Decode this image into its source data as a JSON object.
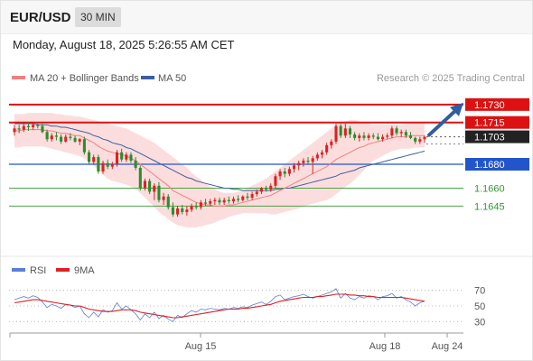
{
  "header": {
    "symbol": "EUR/USD",
    "timeframe": "30 MIN",
    "datetime": "Monday, August 18, 2025 5:26:55 AM CET"
  },
  "legend": {
    "ma20_label": "MA 20 + Bollinger Bands",
    "ma50_label": "MA 50",
    "ma20_color": "#f08080",
    "ma50_color": "#3b5fa0",
    "research": "Research © 2025 Trading Central"
  },
  "rsi_legend": {
    "rsi_label": "RSI",
    "ma9_label": "9MA",
    "rsi_color": "#5a7fd6",
    "ma9_color": "#dd2222"
  },
  "colors": {
    "up": "#dd2222",
    "down": "#2e8b2e",
    "resistance": "#dd1111",
    "current": "#222222",
    "pivot": "#2255cc",
    "support": "#339933",
    "band": "#fcd9d9",
    "arrow": "#2f5f9e"
  },
  "chart_data": {
    "type": "candlestick",
    "symbol": "EUR/USD",
    "ylim": [
      1.1615,
      1.1745
    ],
    "x_ticks": [
      "Aug 15",
      "Aug 18",
      "Aug 24"
    ],
    "levels": [
      {
        "label": "1.1730",
        "value": 1.173,
        "kind": "resistance"
      },
      {
        "label": "1.1715",
        "value": 1.1715,
        "kind": "resistance"
      },
      {
        "label": "1.1703",
        "value": 1.1703,
        "kind": "current"
      },
      {
        "label": "1.1680",
        "value": 1.168,
        "kind": "pivot"
      },
      {
        "label": "1.1660",
        "value": 1.166,
        "kind": "support"
      },
      {
        "label": "1.1645",
        "value": 1.1645,
        "kind": "support"
      }
    ],
    "projection": {
      "from": 1.1703,
      "to": 1.173
    },
    "ohlc": [
      [
        1.1707,
        1.1713,
        1.1704,
        1.171
      ],
      [
        1.171,
        1.1713,
        1.1706,
        1.1709
      ],
      [
        1.1709,
        1.1714,
        1.1707,
        1.1712
      ],
      [
        1.1712,
        1.1715,
        1.1708,
        1.1711
      ],
      [
        1.1711,
        1.1714,
        1.1709,
        1.1713
      ],
      [
        1.1713,
        1.1715,
        1.171,
        1.1712
      ],
      [
        1.1712,
        1.1714,
        1.1706,
        1.1707
      ],
      [
        1.1707,
        1.1709,
        1.1699,
        1.1701
      ],
      [
        1.1701,
        1.1706,
        1.1699,
        1.1704
      ],
      [
        1.1704,
        1.1707,
        1.17,
        1.1703
      ],
      [
        1.1703,
        1.1705,
        1.1697,
        1.1699
      ],
      [
        1.1699,
        1.1705,
        1.1698,
        1.1703
      ],
      [
        1.1703,
        1.1706,
        1.17,
        1.1702
      ],
      [
        1.1702,
        1.1704,
        1.1698,
        1.1699
      ],
      [
        1.1699,
        1.1702,
        1.1696,
        1.1701
      ],
      [
        1.1701,
        1.1703,
        1.1688,
        1.169
      ],
      [
        1.169,
        1.1692,
        1.168,
        1.1682
      ],
      [
        1.1682,
        1.1688,
        1.168,
        1.1686
      ],
      [
        1.1686,
        1.1688,
        1.1672,
        1.1674
      ],
      [
        1.1674,
        1.1683,
        1.1672,
        1.1681
      ],
      [
        1.1681,
        1.1684,
        1.1676,
        1.1678
      ],
      [
        1.1678,
        1.1682,
        1.1676,
        1.168
      ],
      [
        1.168,
        1.1692,
        1.1678,
        1.169
      ],
      [
        1.169,
        1.1693,
        1.1682,
        1.1684
      ],
      [
        1.1684,
        1.169,
        1.1682,
        1.1688
      ],
      [
        1.1688,
        1.169,
        1.1681,
        1.1683
      ],
      [
        1.1683,
        1.1686,
        1.1675,
        1.1677
      ],
      [
        1.1677,
        1.1679,
        1.1658,
        1.166
      ],
      [
        1.166,
        1.1668,
        1.1658,
        1.1666
      ],
      [
        1.1666,
        1.1668,
        1.1655,
        1.1657
      ],
      [
        1.1657,
        1.1664,
        1.165,
        1.1662
      ],
      [
        1.1662,
        1.1665,
        1.1648,
        1.165
      ],
      [
        1.165,
        1.1656,
        1.1646,
        1.1653
      ],
      [
        1.1653,
        1.1655,
        1.1642,
        1.1644
      ],
      [
        1.1644,
        1.1648,
        1.1636,
        1.1638
      ],
      [
        1.1638,
        1.1645,
        1.1636,
        1.1643
      ],
      [
        1.1643,
        1.1646,
        1.1638,
        1.164
      ],
      [
        1.164,
        1.1645,
        1.1637,
        1.1642
      ],
      [
        1.1642,
        1.1647,
        1.164,
        1.1645
      ],
      [
        1.1645,
        1.1648,
        1.1642,
        1.1644
      ],
      [
        1.1644,
        1.165,
        1.1642,
        1.1648
      ],
      [
        1.1648,
        1.1651,
        1.1645,
        1.1647
      ],
      [
        1.1647,
        1.1651,
        1.1645,
        1.1649
      ],
      [
        1.1649,
        1.1652,
        1.1646,
        1.165
      ],
      [
        1.165,
        1.1652,
        1.1646,
        1.1648
      ],
      [
        1.1648,
        1.1652,
        1.1646,
        1.165
      ],
      [
        1.165,
        1.1653,
        1.1647,
        1.1649
      ],
      [
        1.1649,
        1.1653,
        1.1647,
        1.1651
      ],
      [
        1.1651,
        1.1654,
        1.1648,
        1.165
      ],
      [
        1.165,
        1.1654,
        1.1649,
        1.1653
      ],
      [
        1.1653,
        1.1656,
        1.165,
        1.1652
      ],
      [
        1.1652,
        1.1657,
        1.165,
        1.1655
      ],
      [
        1.1655,
        1.1659,
        1.1653,
        1.1657
      ],
      [
        1.1657,
        1.1661,
        1.1655,
        1.166
      ],
      [
        1.166,
        1.1662,
        1.1657,
        1.1659
      ],
      [
        1.1659,
        1.1664,
        1.1657,
        1.1662
      ],
      [
        1.1662,
        1.1672,
        1.166,
        1.167
      ],
      [
        1.167,
        1.1676,
        1.1667,
        1.1674
      ],
      [
        1.1674,
        1.1677,
        1.1669,
        1.1672
      ],
      [
        1.1672,
        1.1678,
        1.167,
        1.1676
      ],
      [
        1.1676,
        1.1681,
        1.1673,
        1.1679
      ],
      [
        1.1679,
        1.1683,
        1.1675,
        1.1681
      ],
      [
        1.1681,
        1.1685,
        1.1678,
        1.1683
      ],
      [
        1.1683,
        1.1686,
        1.168,
        1.1682
      ],
      [
        1.1682,
        1.1687,
        1.1672,
        1.1685
      ],
      [
        1.1685,
        1.169,
        1.1683,
        1.1688
      ],
      [
        1.1688,
        1.1692,
        1.1685,
        1.169
      ],
      [
        1.169,
        1.1698,
        1.1688,
        1.1696
      ],
      [
        1.1696,
        1.1701,
        1.1693,
        1.1699
      ],
      [
        1.1699,
        1.1714,
        1.1697,
        1.1712
      ],
      [
        1.1712,
        1.1714,
        1.1702,
        1.1704
      ],
      [
        1.1704,
        1.1714,
        1.1702,
        1.171
      ],
      [
        1.171,
        1.1712,
        1.1702,
        1.1705
      ],
      [
        1.1705,
        1.1707,
        1.17,
        1.1702
      ],
      [
        1.1702,
        1.1706,
        1.1699,
        1.1704
      ],
      [
        1.1704,
        1.1707,
        1.17,
        1.1702
      ],
      [
        1.1702,
        1.1706,
        1.17,
        1.1704
      ],
      [
        1.1704,
        1.1706,
        1.1701,
        1.1703
      ],
      [
        1.1703,
        1.1706,
        1.17,
        1.1701
      ],
      [
        1.1701,
        1.1705,
        1.1699,
        1.1703
      ],
      [
        1.1703,
        1.1706,
        1.1701,
        1.1704
      ],
      [
        1.1704,
        1.1712,
        1.1702,
        1.171
      ],
      [
        1.171,
        1.1712,
        1.1704,
        1.1706
      ],
      [
        1.1706,
        1.1709,
        1.1703,
        1.1707
      ],
      [
        1.1707,
        1.1709,
        1.1702,
        1.1704
      ],
      [
        1.1704,
        1.1707,
        1.1701,
        1.1702
      ],
      [
        1.1702,
        1.1703,
        1.1697,
        1.1699
      ],
      [
        1.1699,
        1.1703,
        1.1697,
        1.1701
      ],
      [
        1.1701,
        1.1704,
        1.1698,
        1.1703
      ]
    ],
    "ma20": [
      1.1708,
      1.1708,
      1.1709,
      1.1709,
      1.1709,
      1.1709,
      1.1709,
      1.1708,
      1.1708,
      1.1707,
      1.1706,
      1.1706,
      1.1705,
      1.1704,
      1.1704,
      1.1702,
      1.17,
      1.1698,
      1.1695,
      1.1693,
      1.1691,
      1.169,
      1.1689,
      1.1688,
      1.1687,
      1.1685,
      1.1683,
      1.168,
      1.1677,
      1.1674,
      1.1671,
      1.1668,
      1.1665,
      1.1662,
      1.1658,
      1.1656,
      1.1654,
      1.1652,
      1.165,
      1.1648,
      1.1647,
      1.1646,
      1.1646,
      1.1645,
      1.1645,
      1.1645,
      1.1646,
      1.1646,
      1.1647,
      1.1648,
      1.1649,
      1.165,
      1.1651,
      1.1652,
      1.1653,
      1.1654,
      1.1656,
      1.1658,
      1.166,
      1.1662,
      1.1664,
      1.1666,
      1.1668,
      1.167,
      1.1672,
      1.1674,
      1.1676,
      1.1678,
      1.1681,
      1.1684,
      1.1686,
      1.1688,
      1.169,
      1.1692,
      1.1694,
      1.1695,
      1.1697,
      1.1698,
      1.1699,
      1.17,
      1.1701,
      1.1702,
      1.1703,
      1.1703,
      1.1703,
      1.1704,
      1.1704,
      1.1704,
      1.1704
    ],
    "ma50": [
      1.1714,
      1.1714,
      1.1714,
      1.1714,
      1.1714,
      1.1713,
      1.1713,
      1.1713,
      1.1712,
      1.1712,
      1.1711,
      1.1711,
      1.171,
      1.1709,
      1.1708,
      1.1707,
      1.1706,
      1.1704,
      1.1703,
      1.1701,
      1.17,
      1.1698,
      1.1697,
      1.1696,
      1.1694,
      1.1693,
      1.1691,
      1.1689,
      1.1687,
      1.1685,
      1.1683,
      1.1681,
      1.1679,
      1.1677,
      1.1675,
      1.1673,
      1.1671,
      1.1669,
      1.1668,
      1.1666,
      1.1665,
      1.1664,
      1.1663,
      1.1662,
      1.1661,
      1.166,
      1.166,
      1.1659,
      1.1659,
      1.1658,
      1.1658,
      1.1658,
      1.1658,
      1.1658,
      1.1658,
      1.1658,
      1.1659,
      1.1659,
      1.166,
      1.166,
      1.1661,
      1.1662,
      1.1663,
      1.1664,
      1.1665,
      1.1666,
      1.1667,
      1.1668,
      1.1669,
      1.167,
      1.1672,
      1.1673,
      1.1674,
      1.1675,
      1.1677,
      1.1678,
      1.1679,
      1.168,
      1.1681,
      1.1682,
      1.1683,
      1.1684,
      1.1685,
      1.1686,
      1.1687,
      1.1688,
      1.1689,
      1.169,
      1.1691
    ],
    "bb_upper": [
      1.1722,
      1.1722,
      1.1722,
      1.1723,
      1.1723,
      1.1723,
      1.1723,
      1.1723,
      1.1723,
      1.1722,
      1.1722,
      1.1721,
      1.1721,
      1.172,
      1.172,
      1.1719,
      1.1718,
      1.1717,
      1.1716,
      1.1715,
      1.1714,
      1.1713,
      1.1712,
      1.1711,
      1.171,
      1.1708,
      1.1706,
      1.1704,
      1.1702,
      1.17,
      1.1698,
      1.1695,
      1.1692,
      1.1689,
      1.1686,
      1.1683,
      1.168,
      1.1677,
      1.1673,
      1.167,
      1.1667,
      1.1664,
      1.1661,
      1.1659,
      1.1657,
      1.1656,
      1.1656,
      1.1656,
      1.1657,
      1.1658,
      1.166,
      1.1662,
      1.1664,
      1.1666,
      1.1668,
      1.1671,
      1.1674,
      1.1677,
      1.168,
      1.1683,
      1.1686,
      1.1689,
      1.1692,
      1.1695,
      1.1698,
      1.1701,
      1.1704,
      1.1707,
      1.171,
      1.1713,
      1.1715,
      1.1716,
      1.1717,
      1.1717,
      1.1716,
      1.1715,
      1.1714,
      1.1713,
      1.1713,
      1.1713,
      1.1713,
      1.1713,
      1.1713,
      1.1713,
      1.1714,
      1.1714,
      1.1714,
      1.1714,
      1.1714
    ],
    "bb_lower": [
      1.1694,
      1.1694,
      1.1695,
      1.1695,
      1.1695,
      1.1695,
      1.1695,
      1.1694,
      1.1693,
      1.1692,
      1.1691,
      1.169,
      1.1689,
      1.1688,
      1.1687,
      1.1685,
      1.1682,
      1.1679,
      1.1675,
      1.1671,
      1.1668,
      1.1666,
      1.1665,
      1.1664,
      1.1663,
      1.1661,
      1.1659,
      1.1656,
      1.1652,
      1.1648,
      1.1644,
      1.164,
      1.1637,
      1.1634,
      1.1631,
      1.1629,
      1.1628,
      1.1627,
      1.1627,
      1.1627,
      1.1628,
      1.1629,
      1.163,
      1.1631,
      1.1633,
      1.1634,
      1.1636,
      1.1637,
      1.1638,
      1.1639,
      1.1639,
      1.1639,
      1.1639,
      1.1639,
      1.1639,
      1.1638,
      1.1638,
      1.1639,
      1.164,
      1.1641,
      1.1642,
      1.1643,
      1.1645,
      1.1646,
      1.1647,
      1.1648,
      1.1649,
      1.165,
      1.1652,
      1.1655,
      1.1658,
      1.1661,
      1.1664,
      1.1667,
      1.1671,
      1.1675,
      1.168,
      1.1683,
      1.1685,
      1.1687,
      1.1689,
      1.1691,
      1.1692,
      1.1693,
      1.1693,
      1.1693,
      1.1694,
      1.1694,
      1.1694
    ],
    "rsi": {
      "ylim": [
        20,
        80
      ],
      "ticks": [
        70,
        50,
        30
      ],
      "rsi": [
        58,
        60,
        62,
        60,
        63,
        61,
        55,
        48,
        52,
        50,
        47,
        52,
        51,
        48,
        50,
        40,
        35,
        42,
        36,
        45,
        42,
        44,
        54,
        46,
        50,
        45,
        40,
        32,
        40,
        35,
        42,
        34,
        38,
        33,
        30,
        38,
        35,
        40,
        44,
        42,
        46,
        45,
        47,
        46,
        45,
        47,
        46,
        48,
        47,
        49,
        48,
        51,
        53,
        55,
        52,
        56,
        62,
        64,
        58,
        60,
        62,
        63,
        65,
        62,
        60,
        62,
        64,
        66,
        68,
        72,
        60,
        66,
        60,
        58,
        62,
        60,
        63,
        62,
        58,
        62,
        63,
        66,
        60,
        62,
        58,
        55,
        50,
        54,
        56
      ],
      "ma9": [
        54,
        55,
        56,
        57,
        58,
        58,
        57,
        56,
        55,
        54,
        53,
        52,
        51,
        50,
        50,
        48,
        46,
        45,
        44,
        43,
        43,
        43,
        44,
        45,
        45,
        45,
        44,
        42,
        41,
        40,
        39,
        38,
        37,
        36,
        35,
        35,
        36,
        37,
        38,
        39,
        40,
        41,
        42,
        43,
        44,
        45,
        46,
        46,
        46,
        47,
        47,
        48,
        49,
        50,
        51,
        52,
        54,
        56,
        57,
        58,
        59,
        60,
        61,
        61,
        61,
        62,
        62,
        63,
        64,
        65,
        65,
        65,
        64,
        64,
        63,
        63,
        62,
        62,
        61,
        61,
        61,
        61,
        61,
        61,
        60,
        59,
        58,
        57,
        56
      ]
    }
  }
}
